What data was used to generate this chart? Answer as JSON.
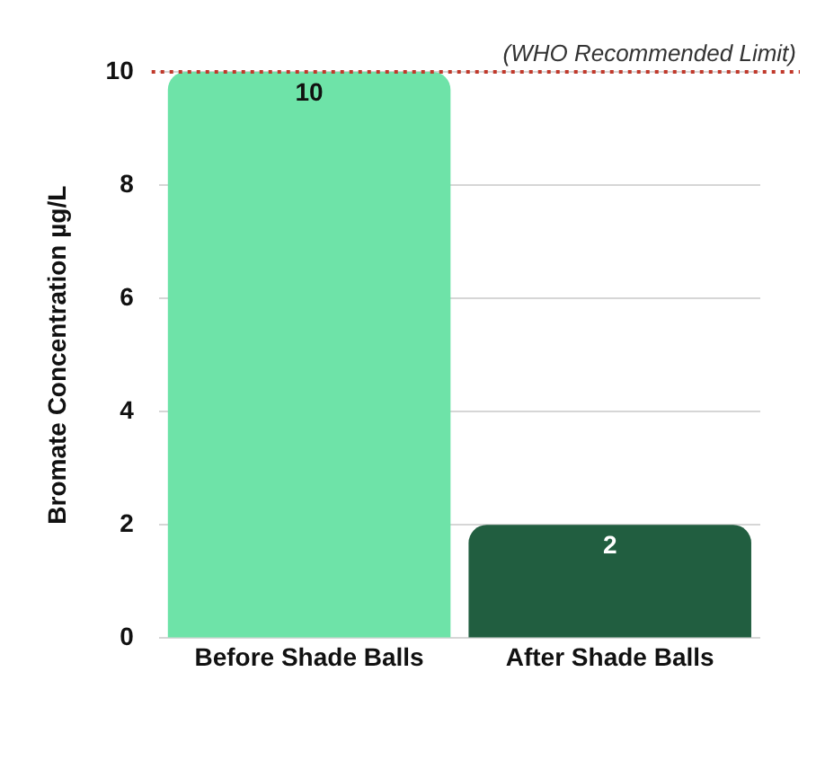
{
  "chart_data": {
    "type": "bar",
    "ylabel": "Bromate Concentration µg/L",
    "categories": [
      "Before Shade Balls",
      "After Shade Balls"
    ],
    "values": [
      10,
      2
    ],
    "colors": [
      "#6ee3a8",
      "#215e40"
    ],
    "ylim": [
      0,
      10
    ],
    "yticks": [
      0,
      2,
      4,
      6,
      8,
      10
    ],
    "grid": "y",
    "data_labels": true,
    "ref_lines": [
      {
        "axis": "y",
        "value": 10,
        "label": "(WHO Recommended Limit)",
        "color": "#c0392b",
        "line_style": "dotted"
      }
    ]
  }
}
